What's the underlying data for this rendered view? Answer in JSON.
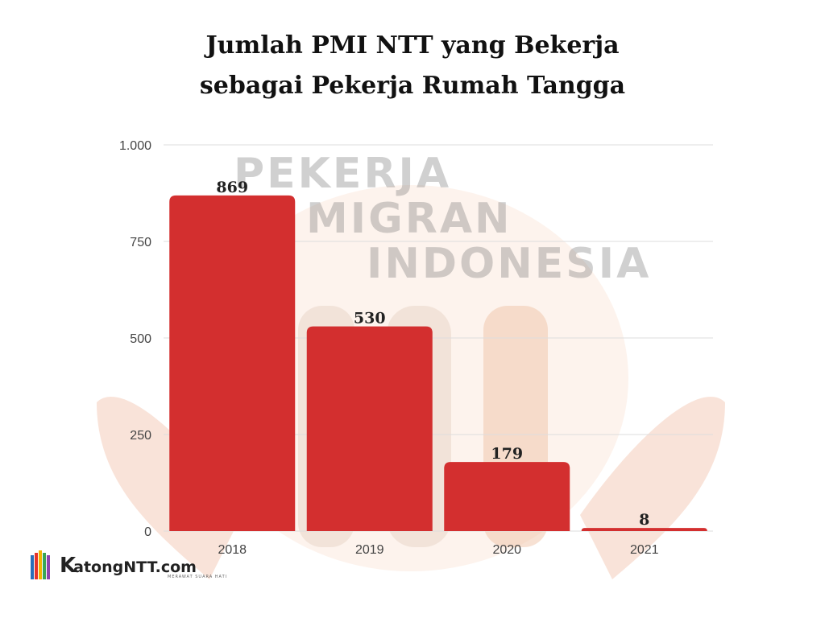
{
  "title": {
    "line1": "Jumlah PMI NTT yang Bekerja",
    "line2": "sebagai Pekerja Rumah Tangga"
  },
  "watermark": {
    "line1": "PEKERJA",
    "line2": "MIGRAN",
    "line3": "INDONESIA"
  },
  "logo": {
    "brand_initial": "K",
    "brand_rest": "atongNTT.com",
    "tagline": "MERAWAT SUARA HATI"
  },
  "chart_data": {
    "type": "bar",
    "categories": [
      "2018",
      "2019",
      "2020",
      "2021"
    ],
    "values": [
      869,
      530,
      179,
      8
    ],
    "ylim": [
      0,
      1000
    ],
    "yticks": [
      0,
      250,
      500,
      750,
      1000
    ],
    "ytick_labels": [
      "0",
      "250",
      "500",
      "750",
      "1.000"
    ],
    "bar_color": "#d32f2f",
    "grid": true,
    "legend": "none"
  }
}
